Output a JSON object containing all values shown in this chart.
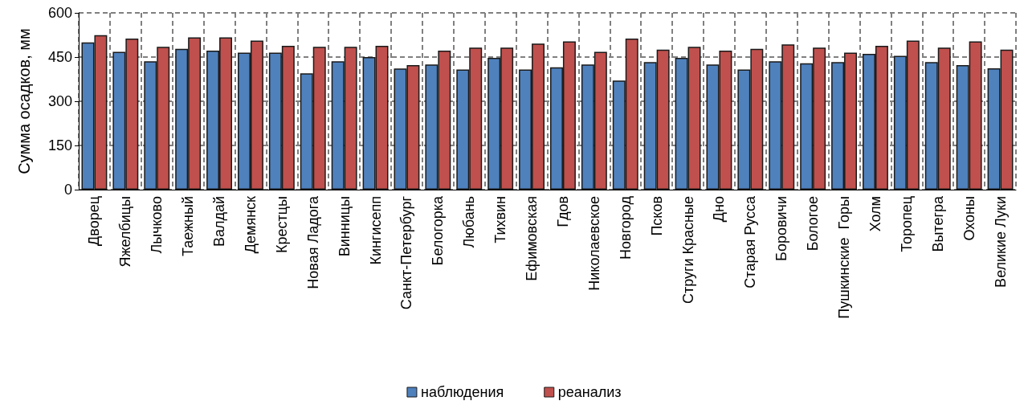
{
  "chart_data": {
    "type": "bar",
    "ylabel": "Сумма осадков, мм",
    "categories": [
      "Дворец",
      "Яжелбицы",
      "Лычково",
      "Таежный",
      "Валдай",
      "Демянск",
      "Крестцы",
      "Новая Ладога",
      "Винницы",
      "Кингисепп",
      "Санкт-Петербург",
      "Белогорка",
      "Любань",
      "Тихвин",
      "Ефимовская",
      "Гдов",
      "Николаевское",
      "Новгород",
      "Псков",
      "Струги Красные",
      "Дно",
      "Старая Русса",
      "Боровичи",
      "Бологое",
      "Пушкинские  Горы",
      "Холм",
      "Торопец",
      "Вытегра",
      "Охоны",
      "Великие Луки"
    ],
    "series": [
      {
        "name": "наблюдения",
        "color": "#4f81bd",
        "values": [
          500,
          468,
          436,
          478,
          472,
          465,
          465,
          395,
          436,
          450,
          411,
          425,
          408,
          447,
          408,
          415,
          425,
          370,
          433,
          447,
          425,
          408,
          436,
          429,
          433,
          461,
          454,
          433,
          423,
          412
        ]
      },
      {
        "name": "реанализ",
        "color": "#c0504d",
        "values": [
          524,
          513,
          485,
          517,
          517,
          506,
          488,
          485,
          485,
          488,
          423,
          472,
          482,
          482,
          496,
          503,
          468,
          513,
          475,
          485,
          472,
          478,
          493,
          482,
          465,
          488,
          506,
          482,
          503,
          475
        ]
      }
    ],
    "ylim": [
      0,
      600
    ],
    "yticks": [
      0,
      150,
      300,
      450,
      600
    ],
    "grid": true,
    "legend": "bottom"
  }
}
